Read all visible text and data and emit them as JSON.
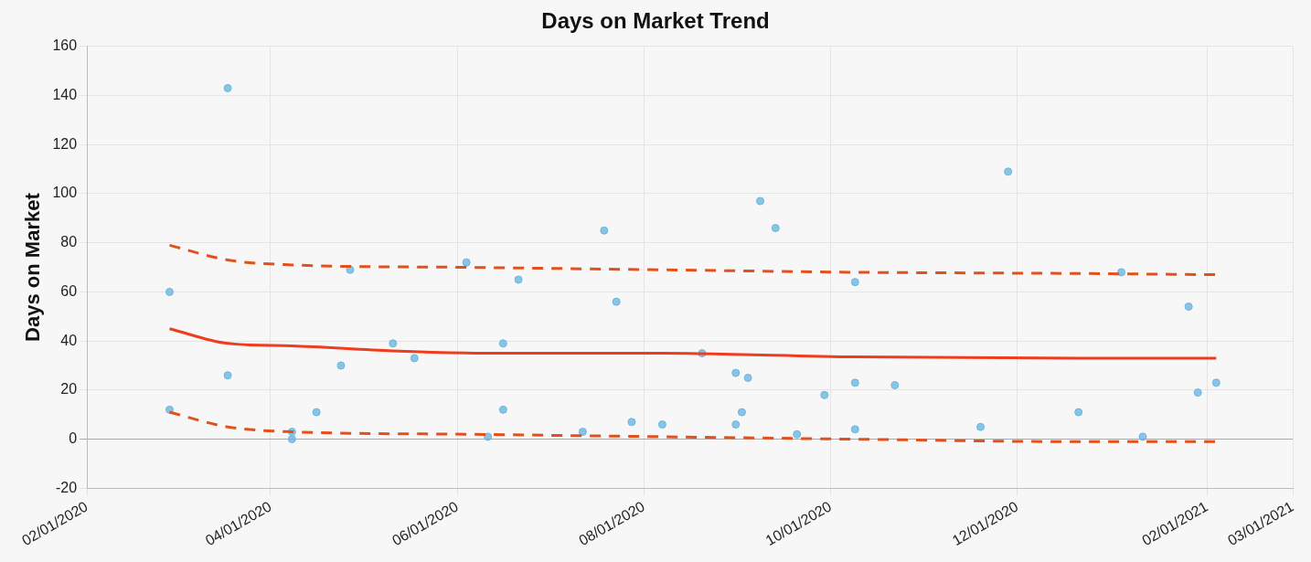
{
  "chart_data": {
    "type": "scatter",
    "title": "Days on Market Trend",
    "ylabel": "Days on Market",
    "xlim": [
      "2020-02-01",
      "2021-03-01"
    ],
    "xticks": [
      {
        "value": "2020-02-01",
        "label": "02/01/2020"
      },
      {
        "value": "2020-04-01",
        "label": "04/01/2020"
      },
      {
        "value": "2020-06-01",
        "label": "06/01/2020"
      },
      {
        "value": "2020-08-01",
        "label": "08/01/2020"
      },
      {
        "value": "2020-10-01",
        "label": "10/01/2020"
      },
      {
        "value": "2020-12-01",
        "label": "12/01/2020"
      },
      {
        "value": "2021-02-01",
        "label": "02/01/2021"
      },
      {
        "value": "2021-03-01",
        "label": "03/01/2021"
      }
    ],
    "ylim": [
      -20,
      160
    ],
    "yticks": [
      -20,
      0,
      20,
      40,
      60,
      80,
      100,
      120,
      140,
      160
    ],
    "grid": true,
    "legend": false,
    "series": [
      {
        "marker": "circle",
        "color": "#6cb6e0",
        "x": [
          "2020-02-28",
          "2020-02-28",
          "2020-03-18",
          "2020-03-18",
          "2020-04-08",
          "2020-04-08",
          "2020-04-16",
          "2020-04-24",
          "2020-04-27",
          "2020-05-11",
          "2020-05-18",
          "2020-06-04",
          "2020-06-11",
          "2020-06-16",
          "2020-06-16",
          "2020-06-21",
          "2020-07-12",
          "2020-07-19",
          "2020-07-23",
          "2020-07-28",
          "2020-08-07",
          "2020-08-20",
          "2020-08-31",
          "2020-08-31",
          "2020-09-02",
          "2020-09-04",
          "2020-09-08",
          "2020-09-13",
          "2020-09-20",
          "2020-09-29",
          "2020-10-09",
          "2020-10-09",
          "2020-10-09",
          "2020-10-22",
          "2020-11-19",
          "2020-11-28",
          "2020-12-21",
          "2021-01-04",
          "2021-01-11",
          "2021-01-26",
          "2021-01-29",
          "2021-02-04"
        ],
        "values": [
          60,
          12,
          143,
          26,
          3,
          0,
          11,
          30,
          69,
          39,
          33,
          72,
          1,
          39,
          12,
          65,
          3,
          85,
          56,
          7,
          6,
          35,
          27,
          6,
          11,
          25,
          97,
          86,
          2,
          18,
          64,
          23,
          4,
          22,
          5,
          109,
          11,
          68,
          1,
          54,
          19,
          23
        ]
      },
      {
        "type": "line",
        "color": "#f03c1e",
        "line_style": "solid",
        "marker": "none",
        "x": [
          "2020-02-28",
          "2020-03-18",
          "2020-04-08",
          "2020-05-11",
          "2020-06-16",
          "2020-08-07",
          "2020-10-09",
          "2020-12-21",
          "2021-02-04"
        ],
        "values": [
          45,
          39,
          38,
          36,
          35,
          35,
          33.5,
          33,
          33
        ]
      },
      {
        "type": "line",
        "color": "#e2501e",
        "line_style": "dashed",
        "marker": "none",
        "x": [
          "2020-02-28",
          "2020-03-18",
          "2020-04-08",
          "2020-06-04",
          "2020-08-07",
          "2020-10-09",
          "2020-12-21",
          "2021-02-04"
        ],
        "values": [
          79,
          73,
          71,
          70,
          69,
          68,
          67.5,
          67
        ]
      },
      {
        "type": "line",
        "color": "#e2501e",
        "line_style": "dashed",
        "marker": "none",
        "x": [
          "2020-02-28",
          "2020-03-18",
          "2020-04-08",
          "2020-06-04",
          "2020-08-07",
          "2020-10-09",
          "2020-12-21",
          "2021-02-04"
        ],
        "values": [
          11,
          5,
          3,
          2,
          1,
          0,
          -1,
          -1
        ]
      }
    ]
  }
}
